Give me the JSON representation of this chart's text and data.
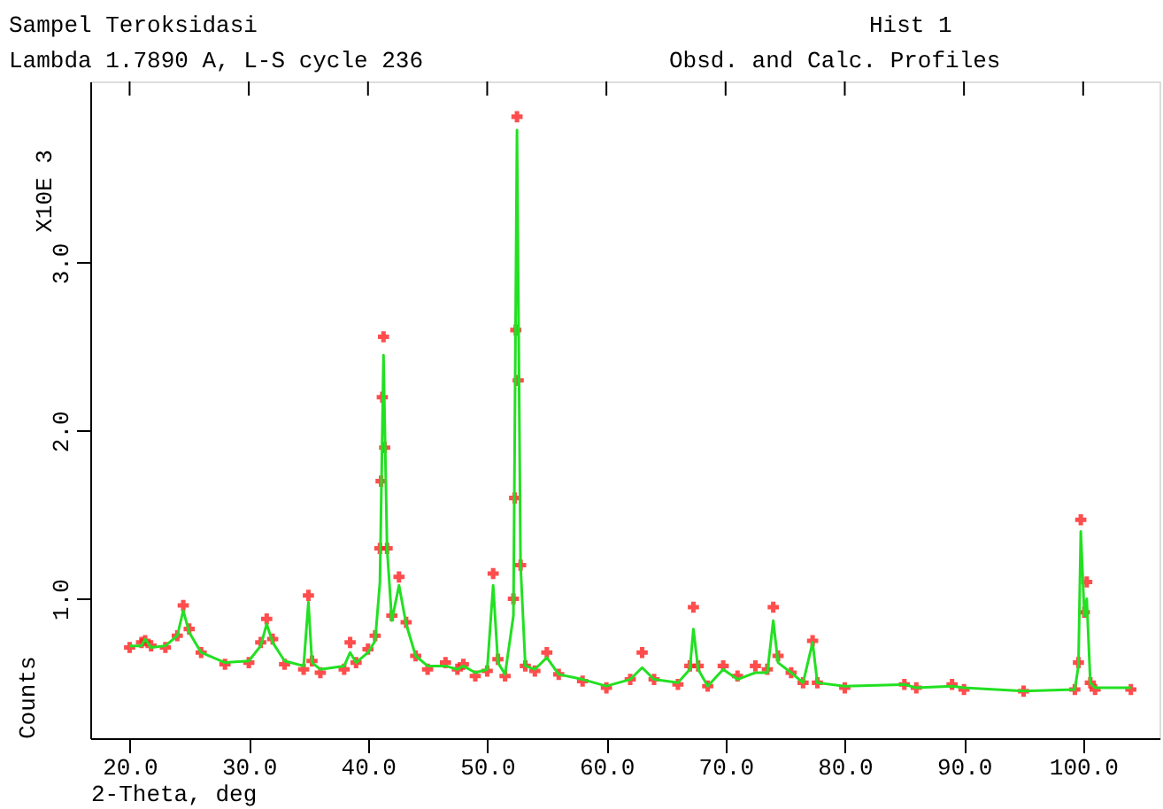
{
  "chart_data": {
    "type": "line",
    "title": "Sampel Teroksidasi",
    "subtitle": "Lambda 1.7890 A, L-S cycle  236",
    "annotations": [
      "Hist  1",
      "Obsd. and Calc. Profiles",
      "X10E 3"
    ],
    "xlabel": "2-Theta, deg",
    "ylabel": "Counts",
    "xlim": [
      16.7,
      106.4
    ],
    "xticks": [
      {
        "value": 20,
        "label": "20.0"
      },
      {
        "value": 30,
        "label": "30.0"
      },
      {
        "value": 40,
        "label": "40.0"
      },
      {
        "value": 50,
        "label": "50.0"
      },
      {
        "value": 60,
        "label": "60.0"
      },
      {
        "value": 70,
        "label": "70.0"
      },
      {
        "value": 80,
        "label": "80.0"
      },
      {
        "value": 90,
        "label": "90.0"
      },
      {
        "value": 100,
        "label": "100.0"
      }
    ],
    "ylim": [
      0.17,
      4.08
    ],
    "yticks": [
      {
        "value": 1,
        "label": "1.0"
      },
      {
        "value": 2,
        "label": "2.0"
      },
      {
        "value": 3,
        "label": "3.0"
      }
    ],
    "grid": false,
    "series": [
      {
        "type": "scatter",
        "marker": "cross",
        "color": "#ff2020",
        "x": [
          20,
          21,
          21.3,
          21.8,
          23,
          24,
          24.5,
          25,
          26,
          28,
          30,
          31,
          31.5,
          32,
          33,
          34.6,
          35,
          35.3,
          36,
          38,
          38.5,
          39,
          40,
          40.6,
          41,
          41.1,
          41.2,
          41.3,
          41.4,
          41.6,
          42,
          42.6,
          43.2,
          44,
          45,
          46.5,
          47.5,
          48,
          49,
          50,
          50.5,
          50.9,
          51.5,
          52.2,
          52.3,
          52.4,
          52.5,
          52.6,
          52.8,
          53.2,
          54,
          55,
          56,
          58,
          60,
          62,
          63,
          64,
          66,
          67,
          67.3,
          67.7,
          68.5,
          69.8,
          71,
          72.5,
          73.5,
          74,
          74.4,
          75.5,
          76.5,
          77.3,
          77.7,
          80,
          85,
          86,
          89,
          90,
          95,
          99.3,
          99.6,
          99.8,
          100.1,
          100.3,
          100.6,
          101,
          104
        ],
        "values": [
          0.71,
          0.74,
          0.75,
          0.72,
          0.71,
          0.78,
          0.96,
          0.82,
          0.68,
          0.61,
          0.62,
          0.74,
          0.88,
          0.76,
          0.61,
          0.58,
          1.02,
          0.63,
          0.56,
          0.58,
          0.74,
          0.62,
          0.7,
          0.78,
          1.3,
          1.7,
          2.2,
          2.56,
          1.9,
          1.3,
          0.9,
          1.13,
          0.86,
          0.66,
          0.58,
          0.62,
          0.58,
          0.61,
          0.54,
          0.57,
          1.15,
          0.64,
          0.54,
          1.0,
          1.6,
          2.6,
          3.87,
          2.3,
          1.2,
          0.6,
          0.57,
          0.68,
          0.55,
          0.51,
          0.47,
          0.52,
          0.68,
          0.52,
          0.49,
          0.6,
          0.95,
          0.6,
          0.48,
          0.6,
          0.54,
          0.6,
          0.58,
          0.95,
          0.66,
          0.56,
          0.5,
          0.75,
          0.5,
          0.47,
          0.49,
          0.47,
          0.49,
          0.46,
          0.45,
          0.46,
          0.62,
          1.47,
          0.92,
          1.1,
          0.5,
          0.46,
          0.46
        ]
      },
      {
        "color": "#22e022",
        "x": [
          20,
          21,
          21.3,
          21.8,
          23,
          24,
          24.5,
          25,
          26,
          28,
          30,
          31,
          31.5,
          32,
          33,
          34.6,
          35,
          35.3,
          36,
          38,
          38.5,
          39,
          40,
          40.6,
          41,
          41.3,
          41.6,
          42,
          42.6,
          43.2,
          44,
          45,
          46.5,
          47.5,
          48,
          49,
          50,
          50.5,
          50.9,
          51.5,
          52.2,
          52.5,
          52.8,
          53.2,
          54,
          55,
          56,
          58,
          60,
          62,
          63,
          64,
          66,
          67,
          67.3,
          67.7,
          68.5,
          69.8,
          71,
          72.5,
          73.5,
          74,
          74.4,
          75.5,
          76.5,
          77.3,
          77.7,
          80,
          85,
          86,
          89,
          90,
          95,
          99.3,
          99.6,
          99.8,
          100.1,
          100.3,
          100.6,
          101,
          104
        ],
        "values": [
          0.72,
          0.72,
          0.76,
          0.71,
          0.72,
          0.78,
          0.93,
          0.8,
          0.68,
          0.62,
          0.63,
          0.72,
          0.85,
          0.74,
          0.63,
          0.6,
          0.98,
          0.62,
          0.58,
          0.6,
          0.68,
          0.62,
          0.68,
          0.75,
          1.1,
          2.45,
          1.3,
          0.87,
          1.08,
          0.85,
          0.66,
          0.6,
          0.6,
          0.58,
          0.6,
          0.56,
          0.58,
          1.08,
          0.62,
          0.55,
          0.9,
          3.79,
          1.2,
          0.6,
          0.58,
          0.65,
          0.55,
          0.52,
          0.48,
          0.52,
          0.59,
          0.52,
          0.5,
          0.58,
          0.82,
          0.58,
          0.48,
          0.58,
          0.52,
          0.56,
          0.56,
          0.87,
          0.62,
          0.56,
          0.5,
          0.74,
          0.5,
          0.48,
          0.49,
          0.47,
          0.48,
          0.47,
          0.45,
          0.46,
          0.6,
          1.4,
          0.9,
          1.0,
          0.5,
          0.47,
          0.47
        ]
      }
    ]
  }
}
